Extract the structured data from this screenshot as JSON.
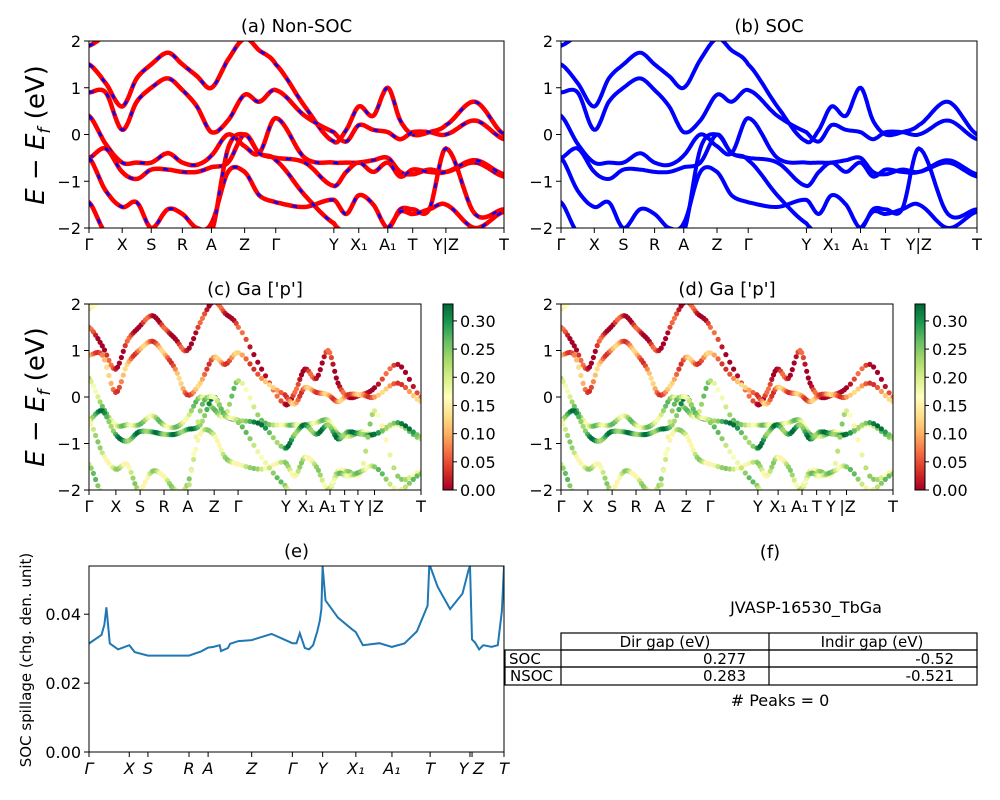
{
  "chart_data": [
    {
      "id": "a",
      "type": "line",
      "title": "(a) Non-SOC",
      "ylabel": "E − E_f (eV)",
      "ylim": [
        -2,
        2
      ],
      "yticks": [
        2,
        1,
        0,
        -1,
        -2
      ],
      "ytick_labels": [
        "2",
        "1",
        "0",
        "−1",
        "−2"
      ],
      "kpath_ticks": [
        {
          "label": "Γ",
          "k": 0.0
        },
        {
          "label": "X",
          "k": 0.08
        },
        {
          "label": "S",
          "k": 0.15
        },
        {
          "label": "R",
          "k": 0.225
        },
        {
          "label": "A",
          "k": 0.295
        },
        {
          "label": "Z",
          "k": 0.375
        },
        {
          "label": "Γ",
          "k": 0.45
        },
        {
          "label": "Y",
          "k": 0.59
        },
        {
          "label": "X₁",
          "k": 0.65
        },
        {
          "label": "A₁",
          "k": 0.72
        },
        {
          "label": "T",
          "k": 0.78
        },
        {
          "label": "Y|Z",
          "k": 0.86
        },
        {
          "label": "T",
          "k": 1.0
        }
      ],
      "style": "red line with blue dashes",
      "colors": {
        "base": "#ff0000",
        "dash": "#0000ff"
      },
      "bands_k": [
        0,
        0.04,
        0.08,
        0.115,
        0.15,
        0.19,
        0.225,
        0.26,
        0.295,
        0.335,
        0.375,
        0.41,
        0.45,
        0.52,
        0.59,
        0.62,
        0.65,
        0.685,
        0.72,
        0.75,
        0.78,
        0.82,
        0.86,
        0.93,
        1.0
      ],
      "bands": [
        [
          1.9,
          2.1,
          null,
          null,
          null,
          null,
          null,
          null,
          null,
          null,
          null,
          null,
          null,
          null,
          null,
          null,
          null,
          null,
          null,
          null,
          null,
          null,
          null,
          null,
          null
        ],
        [
          1.5,
          1.1,
          0.6,
          1.2,
          1.5,
          1.75,
          1.5,
          1.25,
          1.0,
          1.6,
          2.05,
          1.8,
          1.5,
          0.6,
          -0.15,
          0.1,
          0.6,
          0.4,
          1.0,
          0.3,
          0.0,
          0.05,
          0.2,
          0.7,
          0.0
        ],
        [
          0.9,
          0.9,
          0.1,
          0.7,
          1.0,
          1.2,
          0.95,
          0.6,
          0.05,
          0.3,
          0.85,
          0.7,
          0.95,
          0.4,
          0.05,
          -0.15,
          0.2,
          0.1,
          0.05,
          -0.1,
          0.05,
          0.05,
          0.0,
          0.3,
          -0.1
        ],
        [
          0.4,
          -0.2,
          -0.6,
          -0.6,
          -0.6,
          -0.4,
          -0.6,
          -0.65,
          -0.45,
          0.0,
          -0.25,
          -0.4,
          0.35,
          -0.5,
          -0.6,
          -0.6,
          -0.6,
          -0.55,
          -0.5,
          -0.8,
          -0.85,
          -0.75,
          -0.8,
          -0.6,
          -0.9
        ],
        [
          -0.5,
          -0.3,
          -0.8,
          -0.95,
          -0.75,
          -0.75,
          -0.8,
          -0.8,
          -0.7,
          -0.6,
          0.0,
          -0.4,
          -0.5,
          -0.6,
          -1.1,
          -0.8,
          -0.6,
          -0.8,
          -0.6,
          -0.9,
          -0.75,
          -0.8,
          -0.8,
          -0.55,
          -0.85
        ],
        [
          -0.5,
          -1.2,
          -1.55,
          -1.45,
          -2.0,
          -1.6,
          -1.7,
          -2.0,
          -1.9,
          -0.8,
          -0.8,
          -1.3,
          -1.45,
          -1.55,
          -1.4,
          -1.7,
          -1.3,
          -1.5,
          -2.0,
          -1.6,
          -1.6,
          -1.6,
          -0.3,
          -1.7,
          -1.6
        ],
        [
          -1.45,
          -2.1,
          null,
          null,
          null,
          null,
          null,
          null,
          -2.1,
          -0.3,
          0.0,
          -0.4,
          -0.55,
          -1.3,
          -1.9,
          -2.1,
          null,
          null,
          -2.0,
          -1.65,
          -1.7,
          -1.6,
          -1.5,
          -2.0,
          -1.65
        ]
      ]
    },
    {
      "id": "b",
      "type": "line",
      "title": "(b) SOC",
      "ylim": [
        -2,
        2
      ],
      "yticks": [
        2,
        1,
        0,
        -1,
        -2
      ],
      "ytick_labels": [
        "2",
        "1",
        "0",
        "−1",
        "−2"
      ],
      "kpath_ticks": [
        {
          "label": "Γ",
          "k": 0.0
        },
        {
          "label": "X",
          "k": 0.08
        },
        {
          "label": "S",
          "k": 0.15
        },
        {
          "label": "R",
          "k": 0.225
        },
        {
          "label": "A",
          "k": 0.295
        },
        {
          "label": "Z",
          "k": 0.375
        },
        {
          "label": "Γ",
          "k": 0.45
        },
        {
          "label": "Y",
          "k": 0.59
        },
        {
          "label": "X₁",
          "k": 0.65
        },
        {
          "label": "A₁",
          "k": 0.72
        },
        {
          "label": "T",
          "k": 0.78
        },
        {
          "label": "Y|Z",
          "k": 0.86
        },
        {
          "label": "T",
          "k": 1.0
        }
      ],
      "style": "solid blue line",
      "colors": {
        "base": "#0000ff"
      },
      "same_bands_as": "a"
    },
    {
      "id": "c",
      "type": "scatter",
      "title": "(c)  Ga ['p']",
      "ylabel": "E − E_f (eV)",
      "ylim": [
        -2,
        2
      ],
      "yticks": [
        2,
        1,
        0,
        -1,
        -2
      ],
      "ytick_labels": [
        "2",
        "1",
        "0",
        "−1",
        "−2"
      ],
      "kpath_ticks": [
        {
          "label": "Γ",
          "k": 0.0
        },
        {
          "label": "X",
          "k": 0.081
        },
        {
          "label": "S",
          "k": 0.154
        },
        {
          "label": "R",
          "k": 0.226
        },
        {
          "label": "A",
          "k": 0.298
        },
        {
          "label": "Z",
          "k": 0.377
        },
        {
          "label": "Γ",
          "k": 0.449
        },
        {
          "label": "Y",
          "k": 0.593
        },
        {
          "label": "X₁",
          "k": 0.654
        },
        {
          "label": "A₁",
          "k": 0.726
        },
        {
          "label": "T",
          "k": 0.77
        },
        {
          "label": "Y",
          "k": 0.81
        },
        {
          "label": "|Z",
          "k": 0.86
        },
        {
          "label": "T",
          "k": 1.0
        }
      ],
      "colorbar": {
        "cmap": "RdYlGn",
        "range": [
          0,
          0.33
        ],
        "ticks": [
          "0.00",
          "0.05",
          "0.10",
          "0.15",
          "0.20",
          "0.25",
          "0.30"
        ]
      },
      "same_bands_as": "a",
      "band_weights": [
        0.12,
        0.02,
        0.08,
        0.22,
        0.28,
        0.2,
        0.22
      ]
    },
    {
      "id": "d",
      "type": "scatter",
      "title": "(d) Ga ['p']",
      "ylim": [
        -2,
        2
      ],
      "yticks": [
        2,
        1,
        0,
        -1,
        -2
      ],
      "ytick_labels": [
        "2",
        "1",
        "0",
        "−1",
        "−2"
      ],
      "kpath_ticks": [
        {
          "label": "Γ",
          "k": 0.0
        },
        {
          "label": "X",
          "k": 0.081
        },
        {
          "label": "S",
          "k": 0.154
        },
        {
          "label": "R",
          "k": 0.226
        },
        {
          "label": "A",
          "k": 0.298
        },
        {
          "label": "Z",
          "k": 0.377
        },
        {
          "label": "Γ",
          "k": 0.449
        },
        {
          "label": "Y",
          "k": 0.593
        },
        {
          "label": "X₁",
          "k": 0.654
        },
        {
          "label": "A₁",
          "k": 0.726
        },
        {
          "label": "T",
          "k": 0.77
        },
        {
          "label": "Y",
          "k": 0.81
        },
        {
          "label": "|Z",
          "k": 0.86
        },
        {
          "label": "T",
          "k": 1.0
        }
      ],
      "colorbar": {
        "cmap": "RdYlGn",
        "range": [
          0,
          0.33
        ],
        "ticks": [
          "0.00",
          "0.05",
          "0.10",
          "0.15",
          "0.20",
          "0.25",
          "0.30"
        ]
      },
      "same_bands_as": "a",
      "band_weights": [
        0.12,
        0.02,
        0.08,
        0.22,
        0.28,
        0.2,
        0.22
      ]
    },
    {
      "id": "e",
      "type": "line",
      "title": "(e)",
      "ylabel": "SOC spillage (chg. den. unit)",
      "ylim": [
        0,
        0.054
      ],
      "yticks": [
        0.0,
        0.02,
        0.04
      ],
      "ytick_labels": [
        "0.00",
        "0.02",
        "0.04"
      ],
      "color": "#1f77b4",
      "kpath_ticks": [
        {
          "label": "Γ",
          "k": 0.0
        },
        {
          "label": "X",
          "k": 0.097
        },
        {
          "label": "S",
          "k": 0.142
        },
        {
          "label": "R",
          "k": 0.241
        },
        {
          "label": "A",
          "k": 0.287
        },
        {
          "label": "Z",
          "k": 0.392
        },
        {
          "label": "Γ",
          "k": 0.49
        },
        {
          "label": "Y",
          "k": 0.563
        },
        {
          "label": "X₁",
          "k": 0.643
        },
        {
          "label": "A₁",
          "k": 0.73
        },
        {
          "label": "T",
          "k": 0.822
        },
        {
          "label": "Y",
          "k": 0.918
        },
        {
          "label": "Z",
          "k": 0.923
        },
        {
          "label": "T",
          "k": 1.0
        }
      ],
      "x": [
        0,
        0.03,
        0.037,
        0.042,
        0.05,
        0.07,
        0.097,
        0.11,
        0.142,
        0.2,
        0.241,
        0.27,
        0.287,
        0.3,
        0.315,
        0.318,
        0.335,
        0.34,
        0.36,
        0.392,
        0.44,
        0.49,
        0.5,
        0.508,
        0.52,
        0.53,
        0.54,
        0.55,
        0.556,
        0.56,
        0.563,
        0.57,
        0.6,
        0.635,
        0.643,
        0.66,
        0.7,
        0.73,
        0.76,
        0.79,
        0.816,
        0.82,
        0.822,
        0.84,
        0.87,
        0.9,
        0.915,
        0.918,
        0.923,
        0.93,
        0.94,
        0.95,
        0.97,
        0.985,
        0.995,
        1.0
      ],
      "y": [
        0.0315,
        0.034,
        0.037,
        0.042,
        0.0315,
        0.0298,
        0.031,
        0.029,
        0.028,
        0.028,
        0.028,
        0.0292,
        0.0303,
        0.0305,
        0.031,
        0.0293,
        0.0302,
        0.0314,
        0.0322,
        0.0325,
        0.0343,
        0.0316,
        0.0316,
        0.0345,
        0.0302,
        0.0298,
        0.031,
        0.035,
        0.038,
        0.0415,
        0.054,
        0.044,
        0.039,
        0.0355,
        0.0348,
        0.031,
        0.0316,
        0.0305,
        0.0315,
        0.035,
        0.0425,
        0.0543,
        0.054,
        0.048,
        0.0415,
        0.046,
        0.053,
        0.054,
        0.0327,
        0.0318,
        0.0298,
        0.031,
        0.0305,
        0.031,
        0.041,
        0.054
      ]
    }
  ],
  "table": {
    "title": "(f)",
    "caption": "JVASP-16530_TbGa",
    "columns": [
      "Dir gap (eV)",
      "Indir gap (eV)"
    ],
    "rows": [
      {
        "label": "SOC",
        "dir": "0.277",
        "indir": "-0.52"
      },
      {
        "label": "NSOC",
        "dir": "0.283",
        "indir": "-0.521"
      }
    ],
    "footer": "# Peaks = 0"
  }
}
